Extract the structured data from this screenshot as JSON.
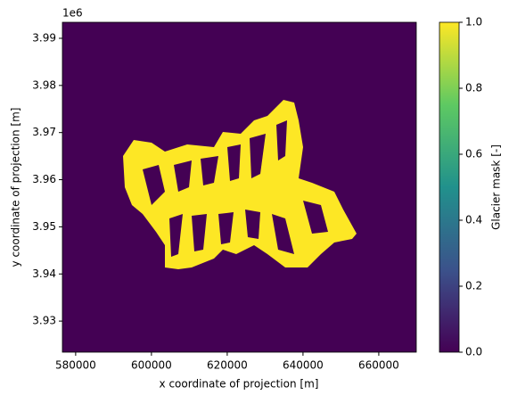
{
  "chart_data": {
    "type": "image",
    "x_label": "x coordinate of projection [m]",
    "y_label": "y coordinate of projection [m]",
    "y_offset_text": "1e6",
    "xlim": [
      576500,
      669900
    ],
    "xticks": [
      580000,
      600000,
      620000,
      640000,
      660000
    ],
    "ylim": [
      3923400,
      3993400
    ],
    "yticks": [
      {
        "value": 3930000,
        "label": "3.93"
      },
      {
        "value": 3940000,
        "label": "3.94"
      },
      {
        "value": 3950000,
        "label": "3.95"
      },
      {
        "value": 3960000,
        "label": "3.96"
      },
      {
        "value": 3970000,
        "label": "3.97"
      },
      {
        "value": 3980000,
        "label": "3.98"
      },
      {
        "value": 3990000,
        "label": "3.99"
      }
    ],
    "colormap": [
      "#440154",
      "#3b528b",
      "#21918c",
      "#5ec962",
      "#fde725"
    ],
    "colorbar": {
      "label": "Glacier mask [-]",
      "lim": [
        0,
        1
      ],
      "ticks": [
        {
          "value": 0,
          "label": "0.0"
        },
        0.2,
        0.4,
        0.6,
        0.8,
        {
          "value": 1,
          "label": "1.0"
        }
      ]
    }
  }
}
